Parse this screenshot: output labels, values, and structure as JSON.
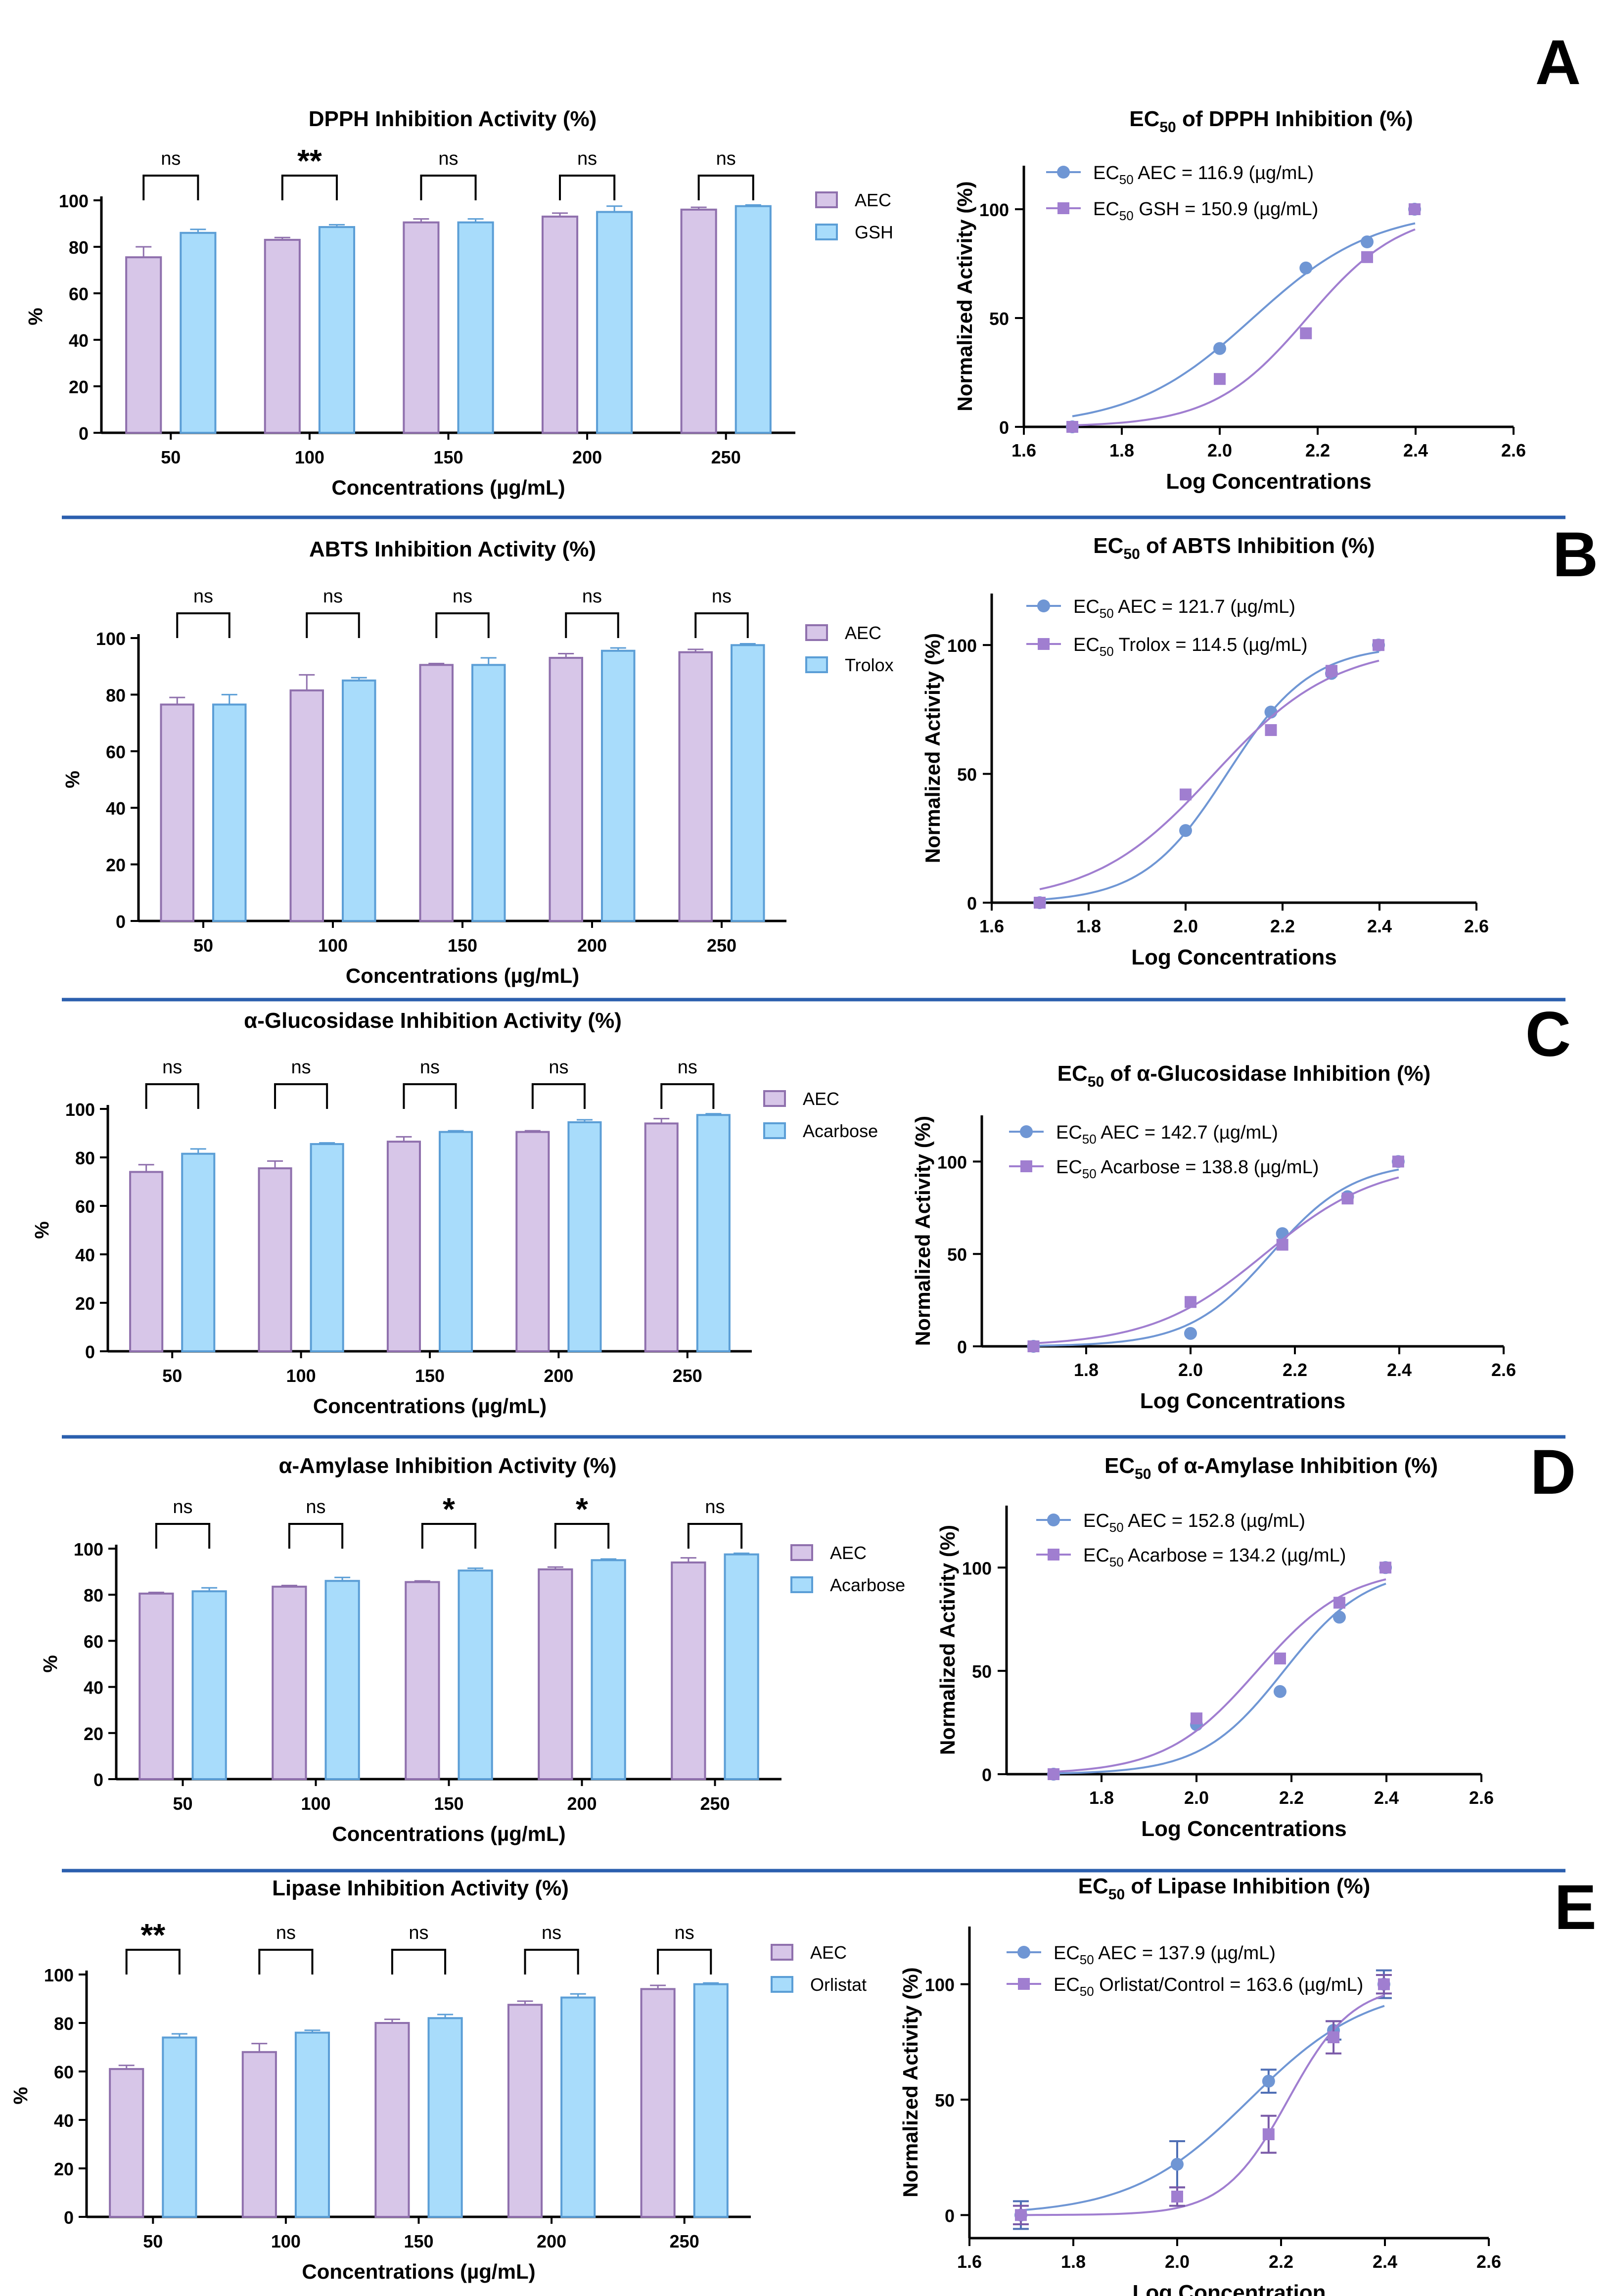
{
  "colors": {
    "aec_fill": "#d7c6e8",
    "aec_stroke": "#8f70ad",
    "ref_fill": "#a8dcfb",
    "ref_stroke": "#5b9ed6",
    "aec_curve": "#6f96d4",
    "ref_curve": "#a07ed0",
    "divider": "#2b5fae",
    "axis": "#000000"
  },
  "panels": [
    {
      "letter": "A"
    },
    {
      "letter": "B"
    },
    {
      "letter": "C"
    },
    {
      "letter": "D"
    },
    {
      "letter": "E"
    }
  ],
  "chart_data": [
    {
      "panel": "A",
      "type": "bar",
      "title": "DPPH Inhibition Activity (%)",
      "xlabel": "Concentrations (µg/mL)",
      "ylabel": "%",
      "ylim": [
        0,
        100
      ],
      "yticks": [
        "0",
        "20",
        "40",
        "60",
        "80",
        "100"
      ],
      "categories": [
        "50",
        "100",
        "150",
        "200",
        "250"
      ],
      "series": [
        {
          "name": "AEC",
          "values": [
            75.5,
            83,
            90.5,
            93,
            96
          ],
          "errors": [
            4.5,
            1,
            1.5,
            1.5,
            1
          ]
        },
        {
          "name": "GSH",
          "values": [
            86,
            88.5,
            90.5,
            95,
            97.5
          ],
          "errors": [
            1.5,
            1,
            1.5,
            2.5,
            0.5
          ]
        }
      ],
      "significance": [
        "ns",
        "**",
        "ns",
        "ns",
        "ns"
      ]
    },
    {
      "panel": "A",
      "type": "scatter",
      "title_pre": "EC",
      "title_sub": "50",
      "title_post": " of DPPH Inhibition (%)",
      "xlabel": "Log Concentrations",
      "ylabel": "Normalized Activity (%)",
      "xlim": [
        1.6,
        2.6
      ],
      "xticks": [
        "1.6",
        "1.8",
        "2.0",
        "2.2",
        "2.4",
        "2.6"
      ],
      "ylim": [
        0,
        120
      ],
      "yticks": [
        "0",
        "50",
        "100"
      ],
      "series": [
        {
          "name": "AEC",
          "legend": " AEC = 116.9 (µg/mL)",
          "ec50": 116.9,
          "slope": 3.5,
          "x": [
            1.699,
            2.0,
            2.176,
            2.301,
            2.398
          ],
          "y": [
            0,
            36,
            73,
            85,
            100
          ],
          "errors": []
        },
        {
          "name": "GSH",
          "legend": " GSH = 150.9 (µg/mL)",
          "ec50": 150.9,
          "slope": 4.5,
          "x": [
            1.699,
            2.0,
            2.176,
            2.301,
            2.398
          ],
          "y": [
            0,
            22,
            43,
            78,
            100
          ],
          "errors": []
        }
      ]
    },
    {
      "panel": "B",
      "type": "bar",
      "title": "ABTS Inhibition Activity (%)",
      "xlabel": "Concentrations (µg/mL)",
      "ylabel": "%",
      "ylim": [
        0,
        100
      ],
      "yticks": [
        "0",
        "20",
        "40",
        "60",
        "80",
        "100"
      ],
      "categories": [
        "50",
        "100",
        "150",
        "200",
        "250"
      ],
      "series": [
        {
          "name": "AEC",
          "values": [
            76.5,
            81.5,
            90.5,
            93,
            95
          ],
          "errors": [
            2.5,
            5.5,
            0.5,
            1.5,
            1
          ]
        },
        {
          "name": "Trolox",
          "values": [
            76.5,
            85,
            90.5,
            95.5,
            97.5
          ],
          "errors": [
            3.5,
            1,
            2.5,
            1,
            0.5
          ]
        }
      ],
      "significance": [
        "ns",
        "ns",
        "ns",
        "ns",
        "ns"
      ]
    },
    {
      "panel": "B",
      "type": "scatter",
      "title_pre": "EC",
      "title_sub": "50",
      "title_post": " of ABTS Inhibition (%)",
      "xlabel": "Log Concentrations",
      "ylabel": "Normalized Activity (%)",
      "xlim": [
        1.6,
        2.6
      ],
      "xticks": [
        "1.6",
        "1.8",
        "2.0",
        "2.2",
        "2.4",
        "2.6"
      ],
      "ylim": [
        0,
        120
      ],
      "yticks": [
        "0",
        "50",
        "100"
      ],
      "series": [
        {
          "name": "AEC",
          "legend": " AEC = 121.7 (µg/mL)",
          "ec50": 121.7,
          "slope": 5.0,
          "x": [
            1.699,
            2.0,
            2.176,
            2.301,
            2.398
          ],
          "y": [
            0,
            28,
            74,
            89,
            100
          ],
          "errors": []
        },
        {
          "name": "Trolox",
          "legend": " Trolox = 114.5 (µg/mL)",
          "ec50": 114.5,
          "slope": 3.5,
          "x": [
            1.699,
            2.0,
            2.176,
            2.301,
            2.398
          ],
          "y": [
            0,
            42,
            67,
            90,
            100
          ],
          "errors": []
        }
      ]
    },
    {
      "panel": "C",
      "type": "bar",
      "title": "α-Glucosidase Inhibition Activity (%)",
      "xlabel": "Concentrations (µg/mL)",
      "ylabel": "%",
      "ylim": [
        0,
        100
      ],
      "yticks": [
        "0",
        "20",
        "40",
        "60",
        "80",
        "100"
      ],
      "categories": [
        "50",
        "100",
        "150",
        "200",
        "250"
      ],
      "series": [
        {
          "name": "AEC",
          "values": [
            74,
            75.5,
            86.5,
            90.5,
            94
          ],
          "errors": [
            3,
            3,
            2,
            0.5,
            2
          ]
        },
        {
          "name": "Acarbose",
          "values": [
            81.5,
            85.5,
            90.5,
            94.5,
            97.5
          ],
          "errors": [
            2,
            0.5,
            0.5,
            1,
            0.5
          ]
        }
      ],
      "significance": [
        "ns",
        "ns",
        "ns",
        "ns",
        "ns"
      ]
    },
    {
      "panel": "C",
      "type": "scatter",
      "title_pre": "EC",
      "title_sub": "50",
      "title_post": " of α-Glucosidase Inhibition (%)",
      "xlabel": "Log Concentrations",
      "ylabel": "Normalized Activity (%)",
      "xlim": [
        1.6,
        2.6
      ],
      "xticks": [
        "1.8",
        "2.0",
        "2.2",
        "2.4",
        "2.6"
      ],
      "ylim": [
        0,
        125
      ],
      "yticks": [
        "0",
        "50",
        "100"
      ],
      "series": [
        {
          "name": "AEC",
          "legend": " AEC = 142.7 (µg/mL)",
          "ec50": 142.7,
          "slope": 5.5,
          "x": [
            1.699,
            2.0,
            2.176,
            2.301,
            2.398
          ],
          "y": [
            0,
            7,
            61,
            81,
            100
          ],
          "errors": []
        },
        {
          "name": "Acarbose",
          "legend": " Acarbose = 138.8 (µg/mL)",
          "ec50": 138.8,
          "slope": 4.0,
          "x": [
            1.699,
            2.0,
            2.176,
            2.301,
            2.398
          ],
          "y": [
            0,
            24,
            55,
            80,
            100
          ],
          "errors": []
        }
      ]
    },
    {
      "panel": "D",
      "type": "bar",
      "title": "α-Amylase Inhibition Activity (%)",
      "xlabel": "Concentrations (µg/mL)",
      "ylabel": "%",
      "ylim": [
        0,
        100
      ],
      "yticks": [
        "0",
        "20",
        "40",
        "60",
        "80",
        "100"
      ],
      "categories": [
        "50",
        "100",
        "150",
        "200",
        "250"
      ],
      "series": [
        {
          "name": "AEC",
          "values": [
            80.5,
            83.5,
            85.5,
            91,
            94
          ],
          "errors": [
            0.5,
            0.5,
            0.5,
            1,
            2
          ]
        },
        {
          "name": "Acarbose",
          "values": [
            81.5,
            86,
            90.5,
            95,
            97.5
          ],
          "errors": [
            1.5,
            1.5,
            1,
            0.5,
            0.5
          ]
        }
      ],
      "significance": [
        "ns",
        "ns",
        "*",
        "*",
        "ns"
      ]
    },
    {
      "panel": "D",
      "type": "scatter",
      "title_pre": "EC",
      "title_sub": "50",
      "title_post": " of α-Amylase Inhibition (%)",
      "xlabel": "Log Concentrations",
      "ylabel": "Normalized Activity (%)",
      "xlim": [
        1.6,
        2.6
      ],
      "xticks": [
        "1.8",
        "2.0",
        "2.2",
        "2.4",
        "2.6"
      ],
      "ylim": [
        0,
        130
      ],
      "yticks": [
        "0",
        "50",
        "100"
      ],
      "series": [
        {
          "name": "AEC",
          "legend": " AEC = 152.8 (µg/mL)",
          "ec50": 152.8,
          "slope": 5.0,
          "x": [
            1.699,
            2.0,
            2.176,
            2.301,
            2.398
          ],
          "y": [
            0,
            24,
            40,
            76,
            100
          ],
          "errors": []
        },
        {
          "name": "Acarbose",
          "legend": " Acarbose = 134.2 (µg/mL)",
          "ec50": 134.2,
          "slope": 4.5,
          "x": [
            1.699,
            2.0,
            2.176,
            2.301,
            2.398
          ],
          "y": [
            0,
            27,
            56,
            83,
            100
          ],
          "errors": []
        }
      ]
    },
    {
      "panel": "E",
      "type": "bar",
      "title": "Lipase Inhibition Activity (%)",
      "xlabel": "Concentrations (µg/mL)",
      "ylabel": "%",
      "ylim": [
        0,
        100
      ],
      "yticks": [
        "0",
        "20",
        "40",
        "60",
        "80",
        "100"
      ],
      "categories": [
        "50",
        "100",
        "150",
        "200",
        "250"
      ],
      "series": [
        {
          "name": "AEC",
          "values": [
            61,
            68,
            80,
            87.5,
            94
          ],
          "errors": [
            1.5,
            3.5,
            1.5,
            1.5,
            1.5
          ]
        },
        {
          "name": "Orlistat",
          "values": [
            74,
            76,
            82,
            90.5,
            96
          ],
          "errors": [
            1.5,
            1,
            1.5,
            1.5,
            0.5
          ]
        }
      ],
      "significance": [
        "**",
        "ns",
        "ns",
        "ns",
        "ns"
      ]
    },
    {
      "panel": "E",
      "type": "scatter",
      "title_pre": "EC",
      "title_sub": "50",
      "title_post": " of Lipase Inhibition (%)",
      "xlabel": "Log Concentration",
      "ylabel": "Normalized Activity (%)",
      "xlim": [
        1.6,
        2.6
      ],
      "xticks": [
        "1.6",
        "1.8",
        "2.0",
        "2.2",
        "2.4",
        "2.6"
      ],
      "ylim": [
        -10,
        125
      ],
      "yticks": [
        "0",
        "50",
        "100"
      ],
      "series": [
        {
          "name": "AEC",
          "legend": " AEC = 137.9 (µg/mL)",
          "ec50": 137.9,
          "slope": 3.8,
          "x": [
            1.699,
            2.0,
            2.176,
            2.301,
            2.398
          ],
          "y": [
            0,
            22,
            58,
            80,
            100
          ],
          "errors": [
            6,
            10,
            5,
            4,
            6
          ]
        },
        {
          "name": "Orlistat/Control",
          "legend": " Orlistat/Control = 163.6 (µg/mL)",
          "ec50": 163.6,
          "slope": 7.0,
          "x": [
            1.699,
            2.0,
            2.176,
            2.301,
            2.398
          ],
          "y": [
            0,
            8,
            35,
            77,
            100
          ],
          "errors": [
            4,
            4,
            8,
            7,
            4
          ]
        }
      ]
    }
  ]
}
